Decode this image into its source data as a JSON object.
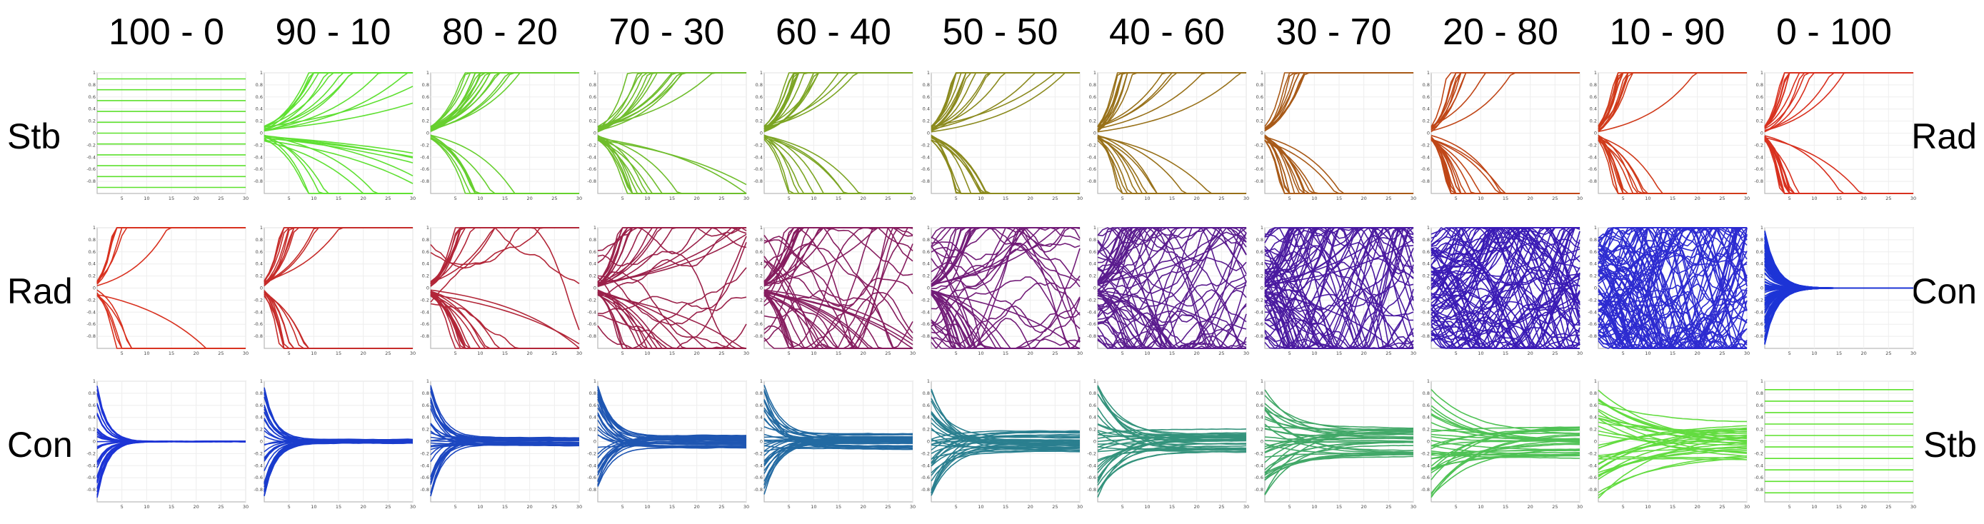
{
  "column_headers": [
    "100 - 0",
    "90 - 10",
    "80 - 20",
    "70 - 30",
    "60 - 40",
    "50 - 50",
    "40 - 60",
    "30 - 70",
    "20 - 80",
    "10 - 90",
    "0 - 100"
  ],
  "rows": [
    {
      "left_label": "Stb",
      "right_label": "Rad"
    },
    {
      "left_label": "Rad",
      "right_label": "Con"
    },
    {
      "left_label": "Con",
      "right_label": "Stb"
    }
  ],
  "chart_data": {
    "type": "line",
    "layout": "3x11 grid of trajectory plots",
    "x_ticks": [
      5,
      10,
      15,
      20,
      25,
      30
    ],
    "y_ticks": [
      -0.8,
      -0.6,
      -0.4,
      -0.2,
      0,
      0.2,
      0.4,
      0.6,
      0.8,
      1
    ],
    "x_ticks_label": [
      "5",
      "10",
      "15",
      "20",
      "25",
      "30"
    ],
    "y_ticks_label": [
      "-0.8",
      "-0.6",
      "-0.4",
      "-0.2",
      "0",
      "0.2",
      "0.4",
      "0.6",
      "0.8",
      "1"
    ],
    "xlim": [
      0,
      30
    ],
    "ylim": [
      -1,
      1
    ],
    "grid": true,
    "row_behaviours": [
      [
        "Stb",
        "Rad"
      ],
      [
        "Rad",
        "Con"
      ],
      [
        "Con",
        "Stb"
      ]
    ],
    "mix_left_percent": [
      100,
      90,
      80,
      70,
      60,
      50,
      40,
      30,
      20,
      10,
      0
    ],
    "row_colors": [
      [
        "#5ce12c",
        "#5fe032",
        "#67cf2f",
        "#6fbd2c",
        "#7ca524",
        "#8b8a1e",
        "#98711a",
        "#a85a18",
        "#bf4617",
        "#d03a1a",
        "#d8311f"
      ],
      [
        "#d8311f",
        "#c62c2a",
        "#b22638",
        "#9a2049",
        "#861d5f",
        "#721c78",
        "#5a1c8e",
        "#4a1aa0",
        "#3a1bb5",
        "#2d2bd0",
        "#1d34d6"
      ],
      [
        "#1d34d6",
        "#1a3ccd",
        "#1c47c0",
        "#1f56b2",
        "#236aa2",
        "#2a7f8f",
        "#34937c",
        "#42a868",
        "#4fc255",
        "#63dc40",
        "#5ce12c"
      ]
    ]
  }
}
